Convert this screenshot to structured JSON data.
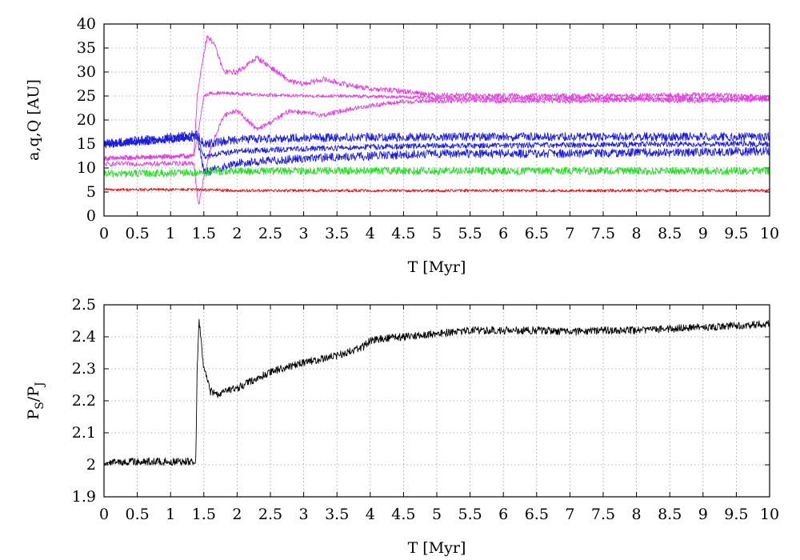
{
  "chart_data": [
    {
      "type": "line",
      "xlabel": "T [Myr]",
      "ylabel": "a,q,Q [AU]",
      "xlim": [
        0,
        10
      ],
      "ylim": [
        0,
        40
      ],
      "x_ticks": [
        "0",
        "0.5",
        "1",
        "1.5",
        "2",
        "2.5",
        "3",
        "3.5",
        "4",
        "4.5",
        "5",
        "5.5",
        "6",
        "6.5",
        "7",
        "7.5",
        "8",
        "8.5",
        "9",
        "9.5",
        "10"
      ],
      "y_ticks": [
        "0",
        "5",
        "10",
        "15",
        "20",
        "25",
        "30",
        "35",
        "40"
      ],
      "grid": true,
      "legend": "none",
      "series": [
        {
          "color": "#e040e0",
          "x": [
            0,
            1.35,
            1.4,
            1.5,
            1.6,
            1.8,
            2.0,
            2.5,
            3.0,
            3.5,
            4.0,
            4.5,
            5.0,
            6.0,
            7.0,
            8.0,
            9.0,
            10.0
          ],
          "values": [
            12.0,
            12.5,
            16.0,
            25.0,
            25.6,
            25.6,
            25.5,
            25.2,
            25.0,
            25.0,
            24.9,
            24.8,
            24.6,
            24.5,
            24.5,
            24.5,
            24.5,
            24.4
          ]
        },
        {
          "color": "#e040e0",
          "x": [
            0,
            1.35,
            1.4,
            1.5,
            1.55,
            1.65,
            1.8,
            2.0,
            2.3,
            2.5,
            2.8,
            3.0,
            3.3,
            3.6,
            4.0,
            4.5,
            5.0,
            6.0,
            7.0,
            8.0,
            9.0,
            10.0
          ],
          "values": [
            12.0,
            12.5,
            25.0,
            34.0,
            37.5,
            36.0,
            30.0,
            30.0,
            33.0,
            31.0,
            28.0,
            27.5,
            28.5,
            27.5,
            26.5,
            26.0,
            25.2,
            25.0,
            25.0,
            25.0,
            25.2,
            24.8
          ]
        },
        {
          "color": "#e040e0",
          "x": [
            0,
            1.35,
            1.42,
            1.5,
            1.6,
            1.8,
            2.0,
            2.3,
            2.5,
            2.8,
            3.0,
            3.3,
            3.6,
            4.0,
            4.5,
            5.0,
            6.0,
            7.0,
            8.0,
            9.0,
            10.0
          ],
          "values": [
            10.8,
            11.0,
            2.0,
            8.0,
            14.0,
            21.0,
            22.0,
            18.0,
            19.5,
            22.0,
            21.5,
            21.0,
            22.0,
            23.0,
            23.8,
            24.0,
            24.0,
            24.0,
            24.2,
            24.0,
            24.3
          ]
        },
        {
          "color": "#1a1ae0",
          "x": [
            0,
            0.5,
            1.0,
            1.4,
            1.5,
            2.0,
            3.0,
            4.0,
            5.0,
            6.0,
            7.0,
            8.0,
            9.0,
            10.0
          ],
          "values": [
            15.0,
            15.3,
            15.8,
            16.8,
            12.5,
            13.5,
            14.0,
            14.4,
            14.6,
            14.7,
            14.8,
            14.9,
            15.0,
            15.0
          ]
        },
        {
          "color": "#1a1ae0",
          "x": [
            0,
            1.4,
            1.5,
            2.0,
            3.0,
            4.0,
            5.0,
            6.0,
            7.0,
            8.0,
            9.0,
            10.0
          ],
          "values": [
            15.0,
            17.0,
            15.0,
            16.0,
            16.3,
            16.4,
            16.5,
            16.5,
            16.5,
            16.5,
            16.5,
            16.5
          ]
        },
        {
          "color": "#1a1ae0",
          "x": [
            0,
            1.4,
            1.5,
            2.0,
            3.0,
            4.0,
            5.0,
            6.0,
            7.0,
            8.0,
            9.0,
            10.0
          ],
          "values": [
            15.0,
            16.5,
            9.0,
            11.0,
            12.0,
            12.5,
            13.0,
            13.0,
            13.0,
            13.2,
            13.3,
            13.5
          ]
        },
        {
          "color": "#22dd22",
          "x": [
            0,
            1.0,
            1.4,
            1.5,
            2.0,
            3.0,
            4.0,
            5.0,
            6.0,
            7.0,
            8.0,
            9.0,
            10.0
          ],
          "values": [
            8.8,
            8.9,
            9.0,
            9.2,
            9.3,
            9.4,
            9.4,
            9.4,
            9.4,
            9.4,
            9.4,
            9.4,
            9.4
          ]
        },
        {
          "color": "#e01010",
          "x": [
            0,
            1.0,
            1.4,
            2.0,
            3.0,
            4.0,
            5.0,
            6.0,
            7.0,
            8.0,
            9.0,
            10.0
          ],
          "values": [
            5.5,
            5.5,
            5.5,
            5.3,
            5.3,
            5.3,
            5.3,
            5.3,
            5.3,
            5.3,
            5.3,
            5.3
          ]
        }
      ]
    },
    {
      "type": "line",
      "xlabel": "T [Myr]",
      "ylabel": "P",
      "ylabel_sub1": "S",
      "ylabel_mid": "/P",
      "ylabel_sub2": "J",
      "xlim": [
        0,
        10
      ],
      "ylim": [
        1.9,
        2.5
      ],
      "x_ticks": [
        "0",
        "0.5",
        "1",
        "1.5",
        "2",
        "2.5",
        "3",
        "3.5",
        "4",
        "4.5",
        "5",
        "5.5",
        "6",
        "6.5",
        "7",
        "7.5",
        "8",
        "8.5",
        "9",
        "9.5",
        "10"
      ],
      "y_ticks": [
        "1.9",
        "2",
        "2.1",
        "2.2",
        "2.3",
        "2.4",
        "2.5"
      ],
      "grid": true,
      "legend": "none",
      "series": [
        {
          "color": "#000000",
          "x": [
            0,
            0.5,
            1.0,
            1.38,
            1.4,
            1.43,
            1.5,
            1.6,
            1.7,
            2.0,
            2.5,
            3.0,
            3.5,
            3.9,
            4.0,
            4.5,
            5.0,
            5.5,
            6.0,
            6.5,
            7.0,
            7.5,
            8.0,
            8.5,
            9.0,
            9.5,
            10.0
          ],
          "values": [
            2.01,
            2.01,
            2.01,
            2.01,
            2.3,
            2.45,
            2.3,
            2.23,
            2.22,
            2.24,
            2.29,
            2.32,
            2.34,
            2.37,
            2.39,
            2.4,
            2.41,
            2.42,
            2.42,
            2.42,
            2.415,
            2.42,
            2.42,
            2.425,
            2.43,
            2.435,
            2.44
          ]
        }
      ]
    }
  ]
}
